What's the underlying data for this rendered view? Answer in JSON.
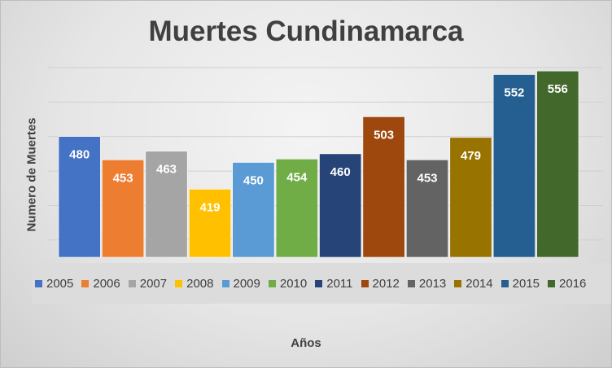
{
  "chart_data": {
    "type": "bar",
    "title": "Muertes Cundinamarca",
    "xlabel": "Años",
    "ylabel": "Numero de Muertes",
    "categories": [
      "2005",
      "2006",
      "2007",
      "2008",
      "2009",
      "2010",
      "2011",
      "2012",
      "2013",
      "2014",
      "2015",
      "2016"
    ],
    "values": [
      480,
      453,
      463,
      419,
      450,
      454,
      460,
      503,
      453,
      479,
      552,
      556
    ],
    "colors": [
      "#4472C4",
      "#ED7D31",
      "#A5A5A5",
      "#FFC000",
      "#5B9BD5",
      "#70AD47",
      "#264478",
      "#9E480E",
      "#636363",
      "#997300",
      "#255E91",
      "#43682B"
    ],
    "ylim": [
      0,
      560
    ],
    "grid": true,
    "legend": "bottom"
  }
}
